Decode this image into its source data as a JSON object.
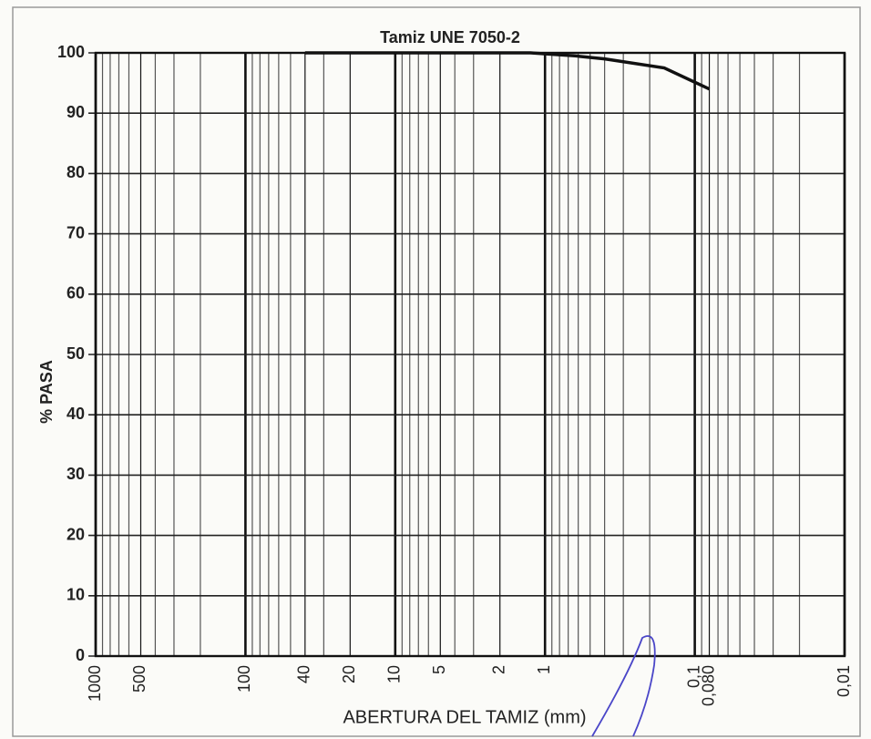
{
  "chart_data": {
    "type": "line",
    "title": "Tamiz UNE 7050-2",
    "x_label": "ABERTURA DEL TAMIZ (mm)",
    "y_label": "% PASA",
    "x_scale": "log",
    "x_reversed": true,
    "grid": true,
    "minor_grid": true,
    "x": [
      40,
      20,
      10,
      5,
      2.5,
      1.25,
      0.63,
      0.4,
      0.16,
      0.08
    ],
    "series": [
      {
        "name": "% PASA",
        "color": "#111111",
        "values": [
          100,
          100,
          100,
          100,
          100,
          100,
          99.5,
          99,
          97.5,
          94
        ]
      }
    ],
    "xlim": [
      1000,
      0.01
    ],
    "xticks": [
      1000,
      500,
      100,
      40,
      20,
      10,
      5,
      2,
      1,
      {
        "value": 0.1,
        "label": "0,1"
      },
      {
        "value": 0.08,
        "label": "0,080"
      },
      {
        "value": 0.01,
        "label": "0,01"
      }
    ],
    "ylim": [
      0,
      100
    ],
    "yticks": [
      0,
      10,
      20,
      30,
      40,
      50,
      60,
      70,
      80,
      90,
      100
    ]
  }
}
